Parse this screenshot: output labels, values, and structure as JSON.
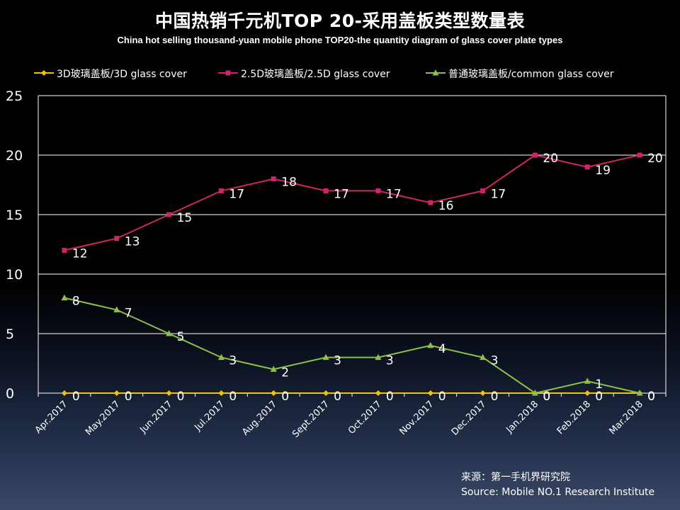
{
  "chart_data": {
    "type": "line",
    "title": "中国热销千元机TOP 20-采用盖板类型数量表",
    "subtitle": "China hot selling thousand-yuan mobile phone TOP20-the quantity diagram of glass cover plate types",
    "categories": [
      "Apr.2017",
      "May.2017",
      "Jun.2017",
      "Jul.2017",
      "Aug.2017",
      "Sept.2017",
      "Oct.2017",
      "Nov.2017",
      "Dec.2017",
      "Jan.2018",
      "Feb.2018",
      "Mar.2018"
    ],
    "series": [
      {
        "name": "3D玻璃盖板/3D glass cover",
        "color": "#f5c20a",
        "marker": "diamond",
        "values": [
          0,
          0,
          0,
          0,
          0,
          0,
          0,
          0,
          0,
          0,
          0,
          0
        ]
      },
      {
        "name": "2.5D玻璃盖板/2.5D glass cover",
        "color": "#d0246a",
        "marker": "square",
        "values": [
          12,
          13,
          15,
          17,
          18,
          17,
          17,
          16,
          17,
          20,
          19,
          20
        ]
      },
      {
        "name": "普通玻璃盖板/common glass cover",
        "color": "#8cc04a",
        "marker": "triangle",
        "values": [
          8,
          7,
          5,
          3,
          2,
          3,
          3,
          4,
          3,
          0,
          1,
          0
        ]
      }
    ],
    "ylim": [
      0,
      25
    ],
    "yticks": [
      0,
      5,
      10,
      15,
      20,
      25
    ],
    "grid": true,
    "legend_position": "top",
    "data_labels": true
  },
  "source": {
    "line1": "来源：第一手机界研究院",
    "line2": "Source: Mobile NO.1 Research Institute"
  }
}
